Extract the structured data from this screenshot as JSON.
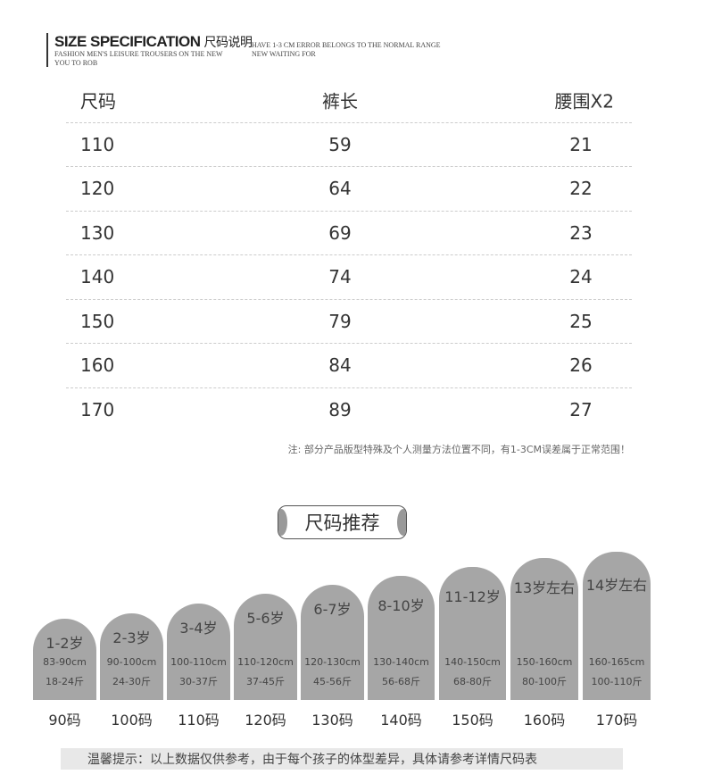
{
  "header": {
    "title": "SIZE SPECIFICATION",
    "title_cn": "尺码说明",
    "sub1": "FASHION MEN'S LEISURE TROUSERS ON THE NEW",
    "sub2": "YOU TO ROB",
    "sub3": "HAVE 1-3 CM ERROR BELONGS TO THE NORMAL RANGE",
    "sub4": "NEW WAITING FOR"
  },
  "table": {
    "headers": [
      "尺码",
      "裤长",
      "腰围X2"
    ],
    "rows": [
      [
        "110",
        "59",
        "21"
      ],
      [
        "120",
        "64",
        "22"
      ],
      [
        "130",
        "69",
        "23"
      ],
      [
        "140",
        "74",
        "24"
      ],
      [
        "150",
        "79",
        "25"
      ],
      [
        "160",
        "84",
        "26"
      ],
      [
        "170",
        "89",
        "27"
      ]
    ]
  },
  "note": "注: 部分产品版型特殊及个人测量方法位置不同，有1-3CM误差属于正常范围！",
  "recommend_title": "尺码推荐",
  "recommend": [
    {
      "age": "1-2岁",
      "height": "83-90cm",
      "weight": "18-24斤",
      "size": "90码"
    },
    {
      "age": "2-3岁",
      "height": "90-100cm",
      "weight": "24-30斤",
      "size": "100码"
    },
    {
      "age": "3-4岁",
      "height": "100-110cm",
      "weight": "30-37斤",
      "size": "110码"
    },
    {
      "age": "5-6岁",
      "height": "110-120cm",
      "weight": "37-45斤",
      "size": "120码"
    },
    {
      "age": "6-7岁",
      "height": "120-130cm",
      "weight": "45-56斤",
      "size": "130码"
    },
    {
      "age": "8-10岁",
      "height": "130-140cm",
      "weight": "56-68斤",
      "size": "140码"
    },
    {
      "age": "11-12岁",
      "height": "140-150cm",
      "weight": "68-80斤",
      "size": "150码"
    },
    {
      "age": "13岁左右",
      "height": "150-160cm",
      "weight": "80-100斤",
      "size": "160码"
    },
    {
      "age": "14岁左右",
      "height": "160-165cm",
      "weight": "100-110斤",
      "size": "170码"
    }
  ],
  "footer": "温馨提示：以上数据仅供参考，由于每个孩子的体型差异，具体请参考详情尺码表"
}
